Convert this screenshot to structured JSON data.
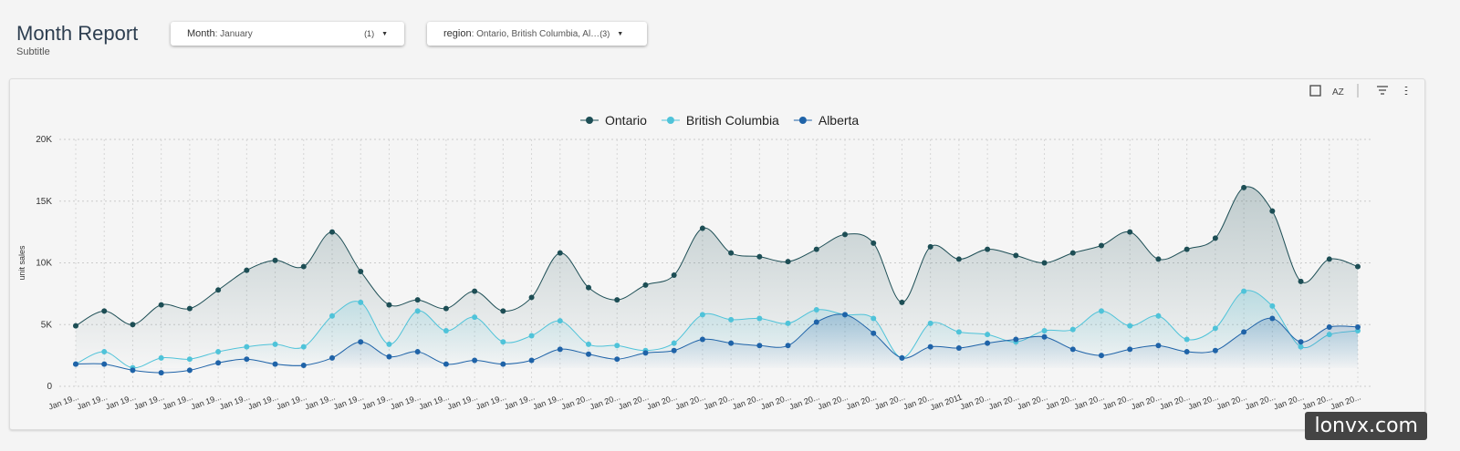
{
  "header": {
    "title": "Month Report",
    "subtitle": "Subtitle"
  },
  "filters": [
    {
      "name": "Month",
      "value": ": January",
      "count": "(1)"
    },
    {
      "name": "region",
      "value": ": Ontario, British Columbia, Al…",
      "count": "(3)"
    }
  ],
  "watermark": "lonvx.com",
  "chart_data": {
    "type": "line",
    "y_label": "unit sales",
    "legend": "top",
    "grid": true,
    "ylim": [
      0,
      20000
    ],
    "yticks": [
      0,
      {
        "value": 5000,
        "label": "5K"
      },
      {
        "value": 10000,
        "label": "10K"
      },
      {
        "value": 15000,
        "label": "15K"
      },
      {
        "value": 20000,
        "label": "20K"
      }
    ],
    "categories": [
      "Jan 19...",
      "Jan 19...",
      "Jan 19...",
      "Jan 19...",
      "Jan 19...",
      "Jan 19...",
      "Jan 19...",
      "Jan 19...",
      "Jan 19...",
      "Jan 19...",
      "Jan 19...",
      "Jan 19...",
      "Jan 19...",
      "Jan 19...",
      "Jan 19...",
      "Jan 19...",
      "Jan 19...",
      "Jan 19...",
      "Jan 20...",
      "Jan 20...",
      "Jan 20...",
      "Jan 20...",
      "Jan 20...",
      "Jan 20...",
      "Jan 20...",
      "Jan 20...",
      "Jan 20...",
      "Jan 20...",
      "Jan 20...",
      "Jan 20...",
      "Jan 20...",
      "Jan 2011",
      "Jan 20...",
      "Jan 20...",
      "Jan 20...",
      "Jan 20...",
      "Jan 20...",
      "Jan 20...",
      "Jan 20...",
      "Jan 20...",
      "Jan 20...",
      "Jan 20...",
      "Jan 20...",
      "Jan 20...",
      "Jan 20...",
      "Jan 20..."
    ],
    "series": [
      {
        "name": "Ontario",
        "color": "#1d4e55",
        "values": [
          4900,
          6100,
          5000,
          6600,
          6300,
          7800,
          9400,
          10200,
          9700,
          12500,
          9300,
          6600,
          7000,
          6300,
          7700,
          6100,
          7200,
          10800,
          8000,
          7000,
          8200,
          9000,
          12800,
          10800,
          10500,
          10100,
          11100,
          12300,
          11600,
          6800,
          11300,
          10300,
          11100,
          10600,
          10000,
          10800,
          11400,
          12500,
          10300,
          11100,
          12000,
          16100,
          14200,
          8500,
          10300,
          9700
        ]
      },
      {
        "name": "British Columbia",
        "color": "#4fc3d9",
        "values": [
          1800,
          2800,
          1500,
          2300,
          2200,
          2800,
          3200,
          3400,
          3200,
          5700,
          6800,
          3400,
          6100,
          4500,
          5600,
          3600,
          4100,
          5300,
          3400,
          3300,
          2900,
          3500,
          5800,
          5400,
          5500,
          5100,
          6200,
          5800,
          5500,
          2300,
          5100,
          4400,
          4200,
          3600,
          4500,
          4600,
          6100,
          4900,
          5700,
          3800,
          4700,
          7700,
          6500,
          3200,
          4200,
          4500
        ]
      },
      {
        "name": "Alberta",
        "color": "#1f63a8",
        "values": [
          1800,
          1800,
          1300,
          1100,
          1300,
          1900,
          2200,
          1800,
          1700,
          2300,
          3600,
          2400,
          2800,
          1800,
          2100,
          1800,
          2100,
          3000,
          2600,
          2200,
          2700,
          2900,
          3800,
          3500,
          3300,
          3300,
          5200,
          5800,
          4300,
          2300,
          3200,
          3100,
          3500,
          3800,
          4000,
          3000,
          2500,
          3000,
          3300,
          2800,
          2900,
          4400,
          5500,
          3600,
          4800,
          4800
        ]
      }
    ]
  }
}
